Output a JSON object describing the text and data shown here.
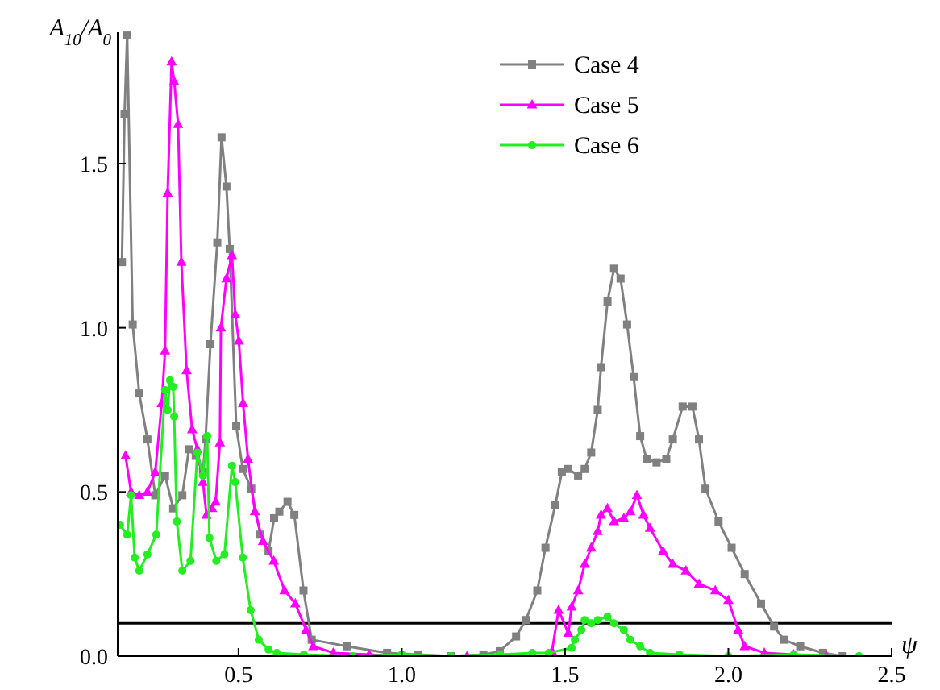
{
  "chart_data": {
    "type": "line",
    "ylabel": "A$_{10}$/A$_{0}$",
    "xlabel": "ψ",
    "xlim": [
      0.13,
      2.5
    ],
    "ylim": [
      0,
      1.9
    ],
    "xticks": [
      {
        "value": 0.5,
        "label": "0.5"
      },
      {
        "value": 1,
        "label": "1.0"
      },
      {
        "value": 1.5,
        "label": "1.5"
      },
      {
        "value": 2,
        "label": "2.0"
      },
      {
        "value": 2.5,
        "label": "2.5"
      }
    ],
    "yticks": [
      {
        "value": 0,
        "label": "0.0"
      },
      {
        "value": 0.5,
        "label": "0.5"
      },
      {
        "value": 1,
        "label": "1.0"
      },
      {
        "value": 1.5,
        "label": "1.5"
      }
    ],
    "grid": false,
    "legend": "top right",
    "line_style": "solid",
    "ref_lines": [
      {
        "axis": "y",
        "value": 0.1,
        "color": "#000000"
      }
    ],
    "series": [
      {
        "name": "Case 4",
        "color": "#808080",
        "marker": "square",
        "x": [
          0.143,
          0.151,
          0.159,
          0.176,
          0.196,
          0.221,
          0.245,
          0.275,
          0.3,
          0.328,
          0.348,
          0.369,
          0.391,
          0.399,
          0.414,
          0.435,
          0.448,
          0.463,
          0.473,
          0.493,
          0.513,
          0.539,
          0.567,
          0.592,
          0.609,
          0.625,
          0.65,
          0.671,
          0.699,
          0.724,
          0.831,
          0.955,
          1.05,
          1.15,
          1.25,
          1.3,
          1.35,
          1.38,
          1.415,
          1.44,
          1.47,
          1.49,
          1.51,
          1.54,
          1.56,
          1.58,
          1.6,
          1.61,
          1.63,
          1.65,
          1.67,
          1.69,
          1.71,
          1.73,
          1.75,
          1.78,
          1.81,
          1.83,
          1.86,
          1.89,
          1.91,
          1.93,
          1.97,
          2.01,
          2.05,
          2.1,
          2.14,
          2.17,
          2.22,
          2.29,
          2.35
        ],
        "values": [
          1.2,
          1.65,
          1.89,
          1.01,
          0.8,
          0.66,
          0.49,
          0.55,
          0.45,
          0.49,
          0.63,
          0.61,
          0.56,
          0.66,
          0.95,
          1.26,
          1.58,
          1.43,
          1.24,
          0.7,
          0.57,
          0.51,
          0.37,
          0.32,
          0.42,
          0.44,
          0.47,
          0.43,
          0.2,
          0.05,
          0.03,
          0.01,
          0.005,
          0,
          0.005,
          0.015,
          0.06,
          0.11,
          0.2,
          0.33,
          0.46,
          0.56,
          0.57,
          0.55,
          0.57,
          0.62,
          0.75,
          0.88,
          1.08,
          1.18,
          1.15,
          1.01,
          0.85,
          0.67,
          0.6,
          0.59,
          0.6,
          0.66,
          0.76,
          0.76,
          0.66,
          0.51,
          0.41,
          0.33,
          0.25,
          0.16,
          0.09,
          0.05,
          0.03,
          0.01,
          0
        ]
      },
      {
        "name": "Case 5",
        "color": "#ff00ff",
        "marker": "triangle",
        "x": [
          0.154,
          0.171,
          0.196,
          0.221,
          0.245,
          0.265,
          0.275,
          0.283,
          0.295,
          0.303,
          0.315,
          0.325,
          0.341,
          0.358,
          0.374,
          0.391,
          0.402,
          0.419,
          0.43,
          0.443,
          0.446,
          0.463,
          0.48,
          0.49,
          0.501,
          0.514,
          0.529,
          0.55,
          0.575,
          0.608,
          0.641,
          0.674,
          0.707,
          0.729,
          0.79,
          0.9,
          1.0,
          1.2,
          1.45,
          1.46,
          1.48,
          1.51,
          1.52,
          1.54,
          1.56,
          1.58,
          1.6,
          1.61,
          1.63,
          1.65,
          1.68,
          1.7,
          1.72,
          1.74,
          1.76,
          1.8,
          1.83,
          1.87,
          1.91,
          1.96,
          2.0,
          2.03,
          2.05,
          2.11,
          2.2,
          2.3
        ],
        "values": [
          0.61,
          0.5,
          0.49,
          0.5,
          0.56,
          0.77,
          0.93,
          1.41,
          1.81,
          1.75,
          1.62,
          1.2,
          0.87,
          0.69,
          0.63,
          0.53,
          0.43,
          0.45,
          0.47,
          0.65,
          1.0,
          1.15,
          1.22,
          1.04,
          0.96,
          0.77,
          0.6,
          0.44,
          0.35,
          0.29,
          0.2,
          0.16,
          0.08,
          0.03,
          0.01,
          0.005,
          0,
          0,
          0,
          0.015,
          0.14,
          0.07,
          0.15,
          0.2,
          0.28,
          0.33,
          0.38,
          0.43,
          0.45,
          0.41,
          0.42,
          0.44,
          0.49,
          0.43,
          0.39,
          0.32,
          0.28,
          0.26,
          0.22,
          0.2,
          0.17,
          0.08,
          0.03,
          0.01,
          0.005,
          0
        ]
      },
      {
        "name": "Case 6",
        "color": "#22ee22",
        "marker": "circle",
        "x": [
          0.137,
          0.159,
          0.171,
          0.182,
          0.196,
          0.221,
          0.248,
          0.275,
          0.283,
          0.29,
          0.3,
          0.303,
          0.311,
          0.328,
          0.353,
          0.374,
          0.391,
          0.404,
          0.411,
          0.432,
          0.457,
          0.48,
          0.49,
          0.513,
          0.537,
          0.562,
          0.592,
          0.617,
          0.7,
          0.85,
          1.0,
          1.15,
          1.3,
          1.4,
          1.45,
          1.52,
          1.53,
          1.55,
          1.56,
          1.58,
          1.6,
          1.63,
          1.65,
          1.68,
          1.7,
          1.73,
          1.76,
          1.85,
          2.0,
          2.2,
          2.4
        ],
        "values": [
          0.4,
          0.37,
          0.49,
          0.3,
          0.26,
          0.31,
          0.37,
          0.81,
          0.75,
          0.84,
          0.82,
          0.73,
          0.41,
          0.26,
          0.29,
          0.62,
          0.55,
          0.67,
          0.36,
          0.29,
          0.31,
          0.58,
          0.53,
          0.3,
          0.14,
          0.05,
          0.02,
          0.01,
          0.005,
          0,
          0.005,
          0,
          0.005,
          0.01,
          0.01,
          0.025,
          0.05,
          0.08,
          0.11,
          0.1,
          0.11,
          0.12,
          0.1,
          0.08,
          0.05,
          0.03,
          0.01,
          0.005,
          0,
          0.005,
          0
        ]
      }
    ]
  }
}
